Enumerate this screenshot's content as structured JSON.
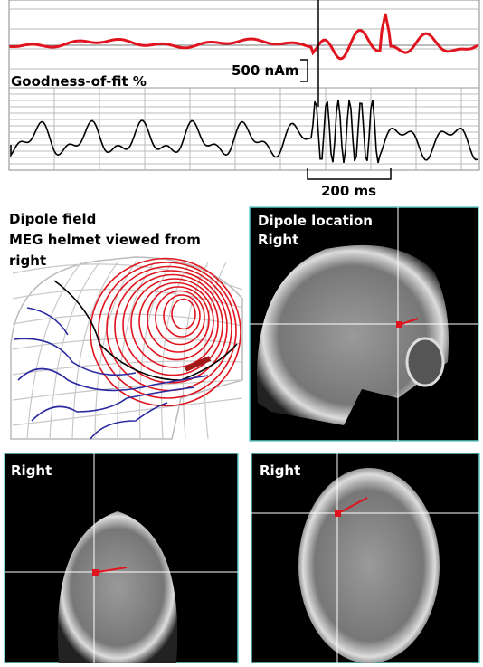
{
  "traces": {
    "amplitude_scale": "500 nAm",
    "goodness_label": "Goodness-of-fit %",
    "time_scale": "200 ms"
  },
  "dipole_field": {
    "lines": [
      "Dipole field",
      "MEG  helmet viewed from",
      "right"
    ]
  },
  "panels": [
    {
      "title_lines": [
        "Dipole location",
        "Right"
      ]
    },
    {
      "title_lines": [
        "Right"
      ]
    },
    {
      "title_lines": [
        "Right"
      ]
    }
  ]
}
